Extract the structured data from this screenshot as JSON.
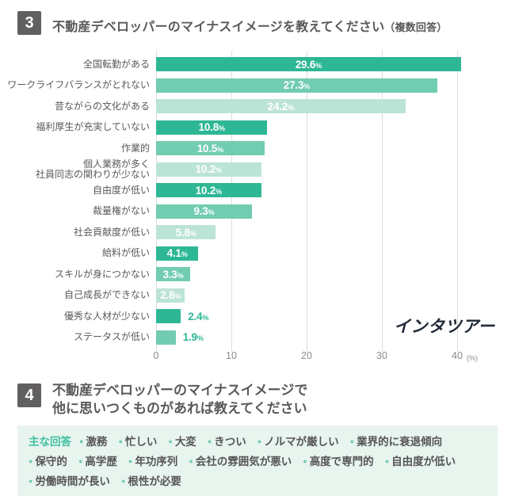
{
  "header": {
    "badge": "3",
    "title": "不動産デベロッパーのマイナスイメージを教えてください",
    "suffix": "（複数回答）"
  },
  "chart_data": {
    "type": "bar",
    "orientation": "horizontal",
    "categories": [
      "全国転勤がある",
      "ワークライフバランスがとれない",
      "昔ながらの文化がある",
      "福利厚生が充実していない",
      "作業的",
      "個人業務が多く\n社員同志の関わりが少ない",
      "自由度が低い",
      "裁量権がない",
      "社会貢献度が低い",
      "給料が低い",
      "スキルが身につかない",
      "自己成長ができない",
      "優秀な人材が少ない",
      "ステータスが低い"
    ],
    "values": [
      29.6,
      27.3,
      24.2,
      10.8,
      10.5,
      10.2,
      10.2,
      9.3,
      5.8,
      4.1,
      3.3,
      2.8,
      2.4,
      1.9
    ],
    "value_suffix": "%",
    "xticks": [
      "0",
      "10",
      "20",
      "30",
      "40"
    ],
    "axis_unit": "(%)",
    "xlim": [
      0,
      40
    ],
    "grid": true,
    "colors": {
      "cycle": [
        "#2eb795",
        "#72ccb2",
        "#bce4d6"
      ],
      "value_inside": "#ffffff",
      "value_outside": "#2eb795",
      "gridline": "#dcdcdc"
    }
  },
  "logo": "インタツアー",
  "section4": {
    "badge": "4",
    "title_line1": "不動産デベロッパーのマイナスイメージで",
    "title_line2": "他に思いつくものがあれば教えてください"
  },
  "answers_box": {
    "label": "主な回答",
    "rows": [
      [
        "激務",
        "忙しい",
        "大変",
        "きつい",
        "ノルマが厳しい",
        "業界的に衰退傾向"
      ],
      [
        "保守的",
        "高学歴",
        "年功序列",
        "会社の雰囲気が悪い",
        "高度で専門的",
        "自由度が低い"
      ],
      [
        "労働時間が長い",
        "根性が必要"
      ]
    ]
  }
}
